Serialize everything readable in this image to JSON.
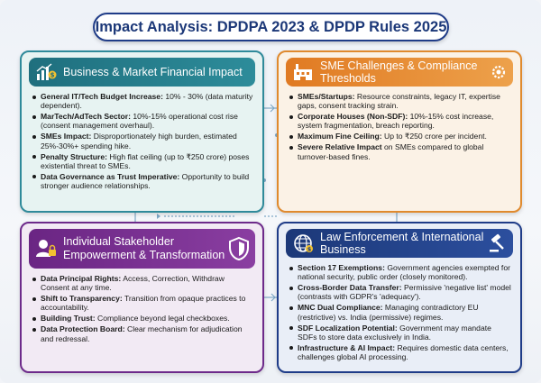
{
  "title": "Impact Analysis: DPDPA 2023 & DPDP Rules 2025",
  "panels": [
    {
      "title": "Business & Market Financial Impact",
      "icon": "chart-money-icon",
      "accent": "#2f8a9a",
      "items": [
        {
          "label": "General IT/Tech Budget Increase:",
          "text": " 10% - 30% (data maturity dependent)."
        },
        {
          "label": "MarTech/AdTech Sector:",
          "text": " 10%-15% operational cost rise (consent management overhaul)."
        },
        {
          "label": "SMEs Impact:",
          "text": " Disproportionately high burden, estimated 25%-30%+ spending hike."
        },
        {
          "label": "Penalty Structure:",
          "text": " High flat ceiling (up to ₹250 crore) poses existential threat to SMEs."
        },
        {
          "label": "Data Governance as Trust Imperative:",
          "text": " Opportunity to build stronger audience relationships."
        }
      ]
    },
    {
      "title": "SME Challenges & Compliance Thresholds",
      "icon": "factory-icon",
      "accent": "#e08a2e",
      "items": [
        {
          "label": "SMEs/Startups:",
          "text": " Resource constraints, legacy IT, expertise gaps, consent tracking strain."
        },
        {
          "label": "Corporate Houses (Non-SDF):",
          "text": " 10%-15% cost increase, system fragmentation, breach reporting."
        },
        {
          "label": "Maximum Fine Ceiling:",
          "text": " Up to ₹250 crore per incident."
        },
        {
          "label": "Severe Relative Impact",
          "text": " on SMEs compared to global turnover-based fines."
        }
      ]
    },
    {
      "title": "Individual Stakeholder Empowerment & Transformation",
      "icon": "user-lock-icon",
      "accent": "#6d2a8a",
      "items": [
        {
          "label": "Data Principal Rights:",
          "text": " Access, Correction, Withdraw Consent at any time."
        },
        {
          "label": "Shift to Transparency:",
          "text": " Transition from opaque practices to accountability."
        },
        {
          "label": "Building Trust:",
          "text": " Compliance beyond legal checkboxes."
        },
        {
          "label": "Data Protection Board:",
          "text": " Clear mechanism for adjudication and redressal."
        }
      ]
    },
    {
      "title": "Law Enforcement & International Business",
      "icon": "globe-dollar-icon",
      "accent": "#1f3c88",
      "items": [
        {
          "label": "Section 17 Exemptions:",
          "text": " Government agencies exempted for national security, public order (closely monitored)."
        },
        {
          "label": "Cross-Border Data Transfer:",
          "text": " Permissive 'negative list' model (contrasts with GDPR's 'adequacy')."
        },
        {
          "label": "MNC Dual Compliance:",
          "text": " Managing contradictory EU (restrictive) vs. India (permissive) regimes."
        },
        {
          "label": "SDF Localization Potential:",
          "text": " Government may mandate SDFs to store data exclusively in India."
        },
        {
          "label": "Infrastructure & AI Impact:",
          "text": " Requires domestic data centers, challenges global AI processing."
        }
      ]
    }
  ]
}
